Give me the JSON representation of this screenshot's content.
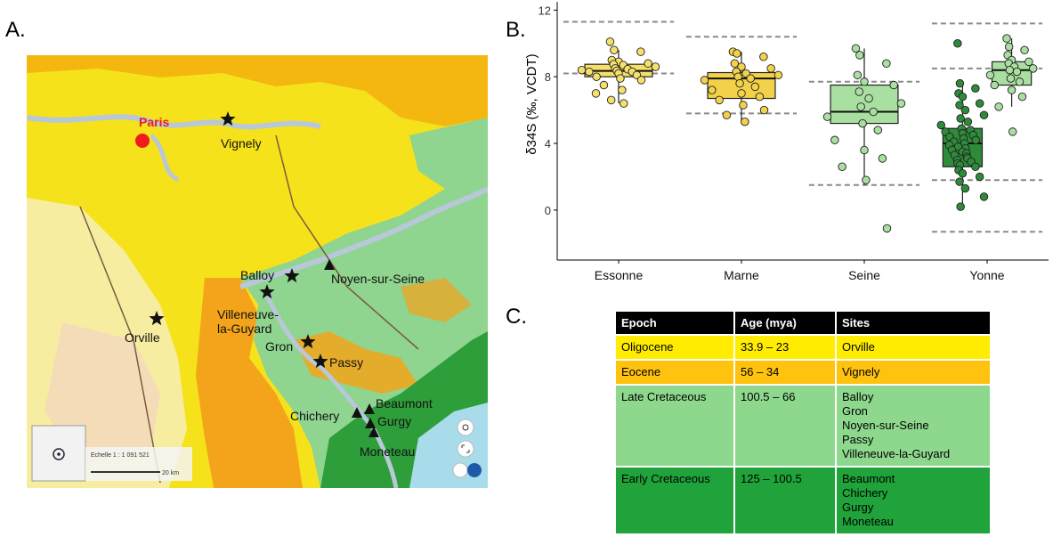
{
  "panels": {
    "a": "A.",
    "b": "B.",
    "c": "C."
  },
  "map": {
    "city_label": "Paris",
    "sites": [
      {
        "name": "Vignely",
        "marker": "star"
      },
      {
        "name": "Balloy",
        "marker": "star"
      },
      {
        "name": "Noyen-sur-Seine",
        "marker": "triangle"
      },
      {
        "name": "Villeneuve-la-Guyard",
        "marker": "star"
      },
      {
        "name": "Orville",
        "marker": "star"
      },
      {
        "name": "Gron",
        "marker": "star"
      },
      {
        "name": "Passy",
        "marker": "star"
      },
      {
        "name": "Beaumont",
        "marker": "triangle"
      },
      {
        "name": "Chichery",
        "marker": "triangle"
      },
      {
        "name": "Gurgy",
        "marker": "triangle"
      },
      {
        "name": "Moneteau",
        "marker": "triangle"
      }
    ],
    "scale_text": "Echelle 1 : 1 091 521",
    "scale_bar_label": "20 km",
    "colors": {
      "oligocene": "#f5e21a",
      "eocene": "#f3b20f",
      "late_cretaceous": "#8fd48f",
      "early_cretaceous": "#2e9e3a",
      "city": "#ee1c1c"
    }
  },
  "chart_data": {
    "type": "box",
    "ylabel": "δ34S (‰, VCDT)",
    "ylim": [
      -3,
      12.5
    ],
    "yticks": [
      0,
      4,
      8,
      12
    ],
    "categories": [
      "Essonne",
      "Marne",
      "Seine",
      "Yonne"
    ],
    "boxes": [
      {
        "category": "Essonne",
        "offset": 0,
        "fill": "#f6e06a",
        "q1": 8.0,
        "median": 8.35,
        "q3": 8.75,
        "whisker_low": 6.4,
        "whisker_high": 9.6,
        "points": [
          10.1,
          9.6,
          9.5,
          9.0,
          8.9,
          8.8,
          8.75,
          8.7,
          8.6,
          8.5,
          8.45,
          8.4,
          8.35,
          8.3,
          8.3,
          8.2,
          8.1,
          8.0,
          7.9,
          7.8,
          7.5,
          7.2,
          7.0,
          6.6,
          6.4
        ]
      },
      {
        "category": "Marne",
        "offset": 0,
        "fill": "#f3d24a",
        "q1": 6.7,
        "median": 7.9,
        "q3": 8.25,
        "whisker_low": 5.3,
        "whisker_high": 9.5,
        "points": [
          9.5,
          9.4,
          9.2,
          8.8,
          8.6,
          8.5,
          8.3,
          8.2,
          8.1,
          8.0,
          7.9,
          7.8,
          7.6,
          7.4,
          7.2,
          7.0,
          6.8,
          6.6,
          6.3,
          6.0,
          5.7,
          5.3
        ]
      },
      {
        "category": "Seine",
        "offset": 0,
        "fill": "#a9dfa0",
        "q1": 5.2,
        "median": 5.9,
        "q3": 7.5,
        "whisker_low": 1.5,
        "whisker_high": 9.7,
        "points": [
          9.7,
          9.3,
          8.8,
          8.1,
          7.7,
          7.5,
          7.1,
          6.7,
          6.4,
          6.2,
          5.9,
          5.6,
          5.2,
          4.8,
          4.2,
          3.6,
          3.1,
          2.6,
          1.8,
          -1.1
        ]
      },
      {
        "category": "Yonne",
        "offset": -0.2,
        "fill": "#2e8b3a",
        "q1": 2.6,
        "median": 4.0,
        "q3": 4.9,
        "whisker_low": 0.2,
        "whisker_high": 7.6,
        "points": [
          10.0,
          7.6,
          7.3,
          7.0,
          6.8,
          6.4,
          6.3,
          6.0,
          5.7,
          5.5,
          5.3,
          5.1,
          4.9,
          4.8,
          4.7,
          4.6,
          4.5,
          4.4,
          4.3,
          4.2,
          4.1,
          4.0,
          3.9,
          3.8,
          3.7,
          3.6,
          3.5,
          3.4,
          3.3,
          3.2,
          3.1,
          3.0,
          2.9,
          2.8,
          2.7,
          2.6,
          2.4,
          2.2,
          2.0,
          1.7,
          1.3,
          0.8,
          0.2
        ]
      },
      {
        "category": "Yonne",
        "offset": 0.2,
        "fill": "#a9dfa0",
        "q1": 7.5,
        "median": 8.4,
        "q3": 8.9,
        "whisker_low": 6.2,
        "whisker_high": 10.3,
        "points": [
          10.3,
          9.8,
          9.6,
          9.3,
          9.0,
          8.9,
          8.8,
          8.6,
          8.5,
          8.4,
          8.3,
          8.1,
          7.9,
          7.7,
          7.5,
          7.2,
          6.8,
          6.2,
          4.7
        ]
      }
    ],
    "dashed_ranges": [
      {
        "category": "Essonne",
        "half_width": 0.45,
        "values": [
          11.3,
          8.2
        ]
      },
      {
        "category": "Marne",
        "half_width": 0.45,
        "values": [
          10.4,
          5.8
        ]
      },
      {
        "category": "Seine",
        "half_width": 0.45,
        "values": [
          7.7,
          1.5
        ]
      },
      {
        "category": "Yonne",
        "half_width": 0.45,
        "values": [
          11.2,
          8.5,
          1.8,
          -1.3
        ]
      }
    ]
  },
  "table": {
    "headers": [
      "Epoch",
      "Age (mya)",
      "Sites"
    ],
    "rows": [
      {
        "epoch": "Oligocene",
        "age": "33.9 – 23",
        "sites": [
          "Orville"
        ],
        "color": "#ffec00"
      },
      {
        "epoch": "Eocene",
        "age": "56 – 34",
        "sites": [
          "Vignely"
        ],
        "color": "#ffc20e"
      },
      {
        "epoch": "Late Cretaceous",
        "age": "100.5 – 66",
        "sites": [
          "Balloy",
          "Gron",
          "Noyen-sur-Seine",
          "Passy",
          "Villeneuve-la-Guyard"
        ],
        "color": "#8ed88e"
      },
      {
        "epoch": "Early Cretaceous",
        "age": "125 – 100.5",
        "sites": [
          "Beaumont",
          "Chichery",
          "Gurgy",
          "Moneteau"
        ],
        "color": "#1fa33a"
      }
    ]
  }
}
